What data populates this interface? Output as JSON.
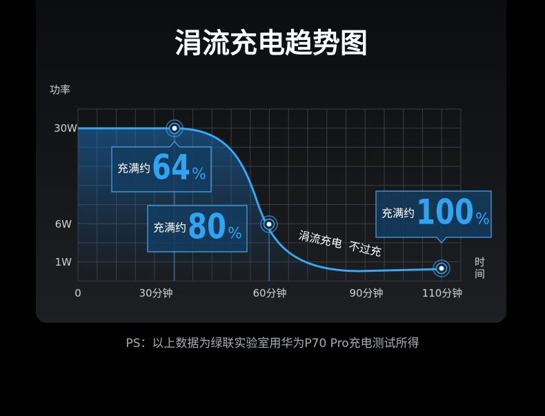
{
  "title": "涓流充电趋势图",
  "y_axis": {
    "label": "功率",
    "ticks": [
      "30W",
      "6W",
      "1W"
    ]
  },
  "x_axis": {
    "label": "时间",
    "ticks": [
      "0",
      "30分钟",
      "60分钟",
      "90分钟",
      "110分钟"
    ]
  },
  "callouts": [
    {
      "prefix": "充满约",
      "value": "64",
      "unit": "%"
    },
    {
      "prefix": "充满约",
      "value": "80",
      "unit": "%"
    },
    {
      "prefix": "充满约",
      "value": "100",
      "unit": "%"
    }
  ],
  "curve_note": "涓流充电  不过充",
  "footnote": "PS：以上数据为绿联实验室用华为P70 Pro充电测试所得"
}
